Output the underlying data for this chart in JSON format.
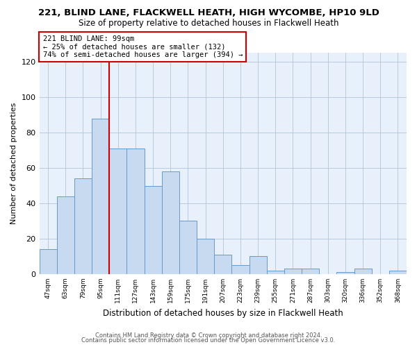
{
  "title1": "221, BLIND LANE, FLACKWELL HEATH, HIGH WYCOMBE, HP10 9LD",
  "title2": "Size of property relative to detached houses in Flackwell Heath",
  "xlabel": "Distribution of detached houses by size in Flackwell Heath",
  "ylabel": "Number of detached properties",
  "bar_labels": [
    "47sqm",
    "63sqm",
    "79sqm",
    "95sqm",
    "111sqm",
    "127sqm",
    "143sqm",
    "159sqm",
    "175sqm",
    "191sqm",
    "207sqm",
    "223sqm",
    "239sqm",
    "255sqm",
    "271sqm",
    "287sqm",
    "303sqm",
    "320sqm",
    "336sqm",
    "352sqm",
    "368sqm"
  ],
  "bar_values": [
    14,
    44,
    54,
    88,
    71,
    71,
    50,
    58,
    30,
    20,
    11,
    5,
    10,
    2,
    3,
    3,
    0,
    1,
    3,
    0,
    2
  ],
  "bar_color": "#c8daf0",
  "bar_edge_color": "#6699cc",
  "vline_color": "#cc0000",
  "annotation_text": "221 BLIND LANE: 99sqm\n← 25% of detached houses are smaller (132)\n74% of semi-detached houses are larger (394) →",
  "annotation_box_color": "#ffffff",
  "annotation_box_edge": "#cc0000",
  "ylim": [
    0,
    125
  ],
  "yticks": [
    0,
    20,
    40,
    60,
    80,
    100,
    120
  ],
  "footer1": "Contains HM Land Registry data © Crown copyright and database right 2024.",
  "footer2": "Contains public sector information licensed under the Open Government Licence v3.0.",
  "bg_color": "#ffffff",
  "plot_bg_color": "#e8f0fb",
  "grid_color": "#b0c4d8",
  "title1_fontsize": 9.5,
  "title2_fontsize": 8.5,
  "vline_index": 3.5
}
